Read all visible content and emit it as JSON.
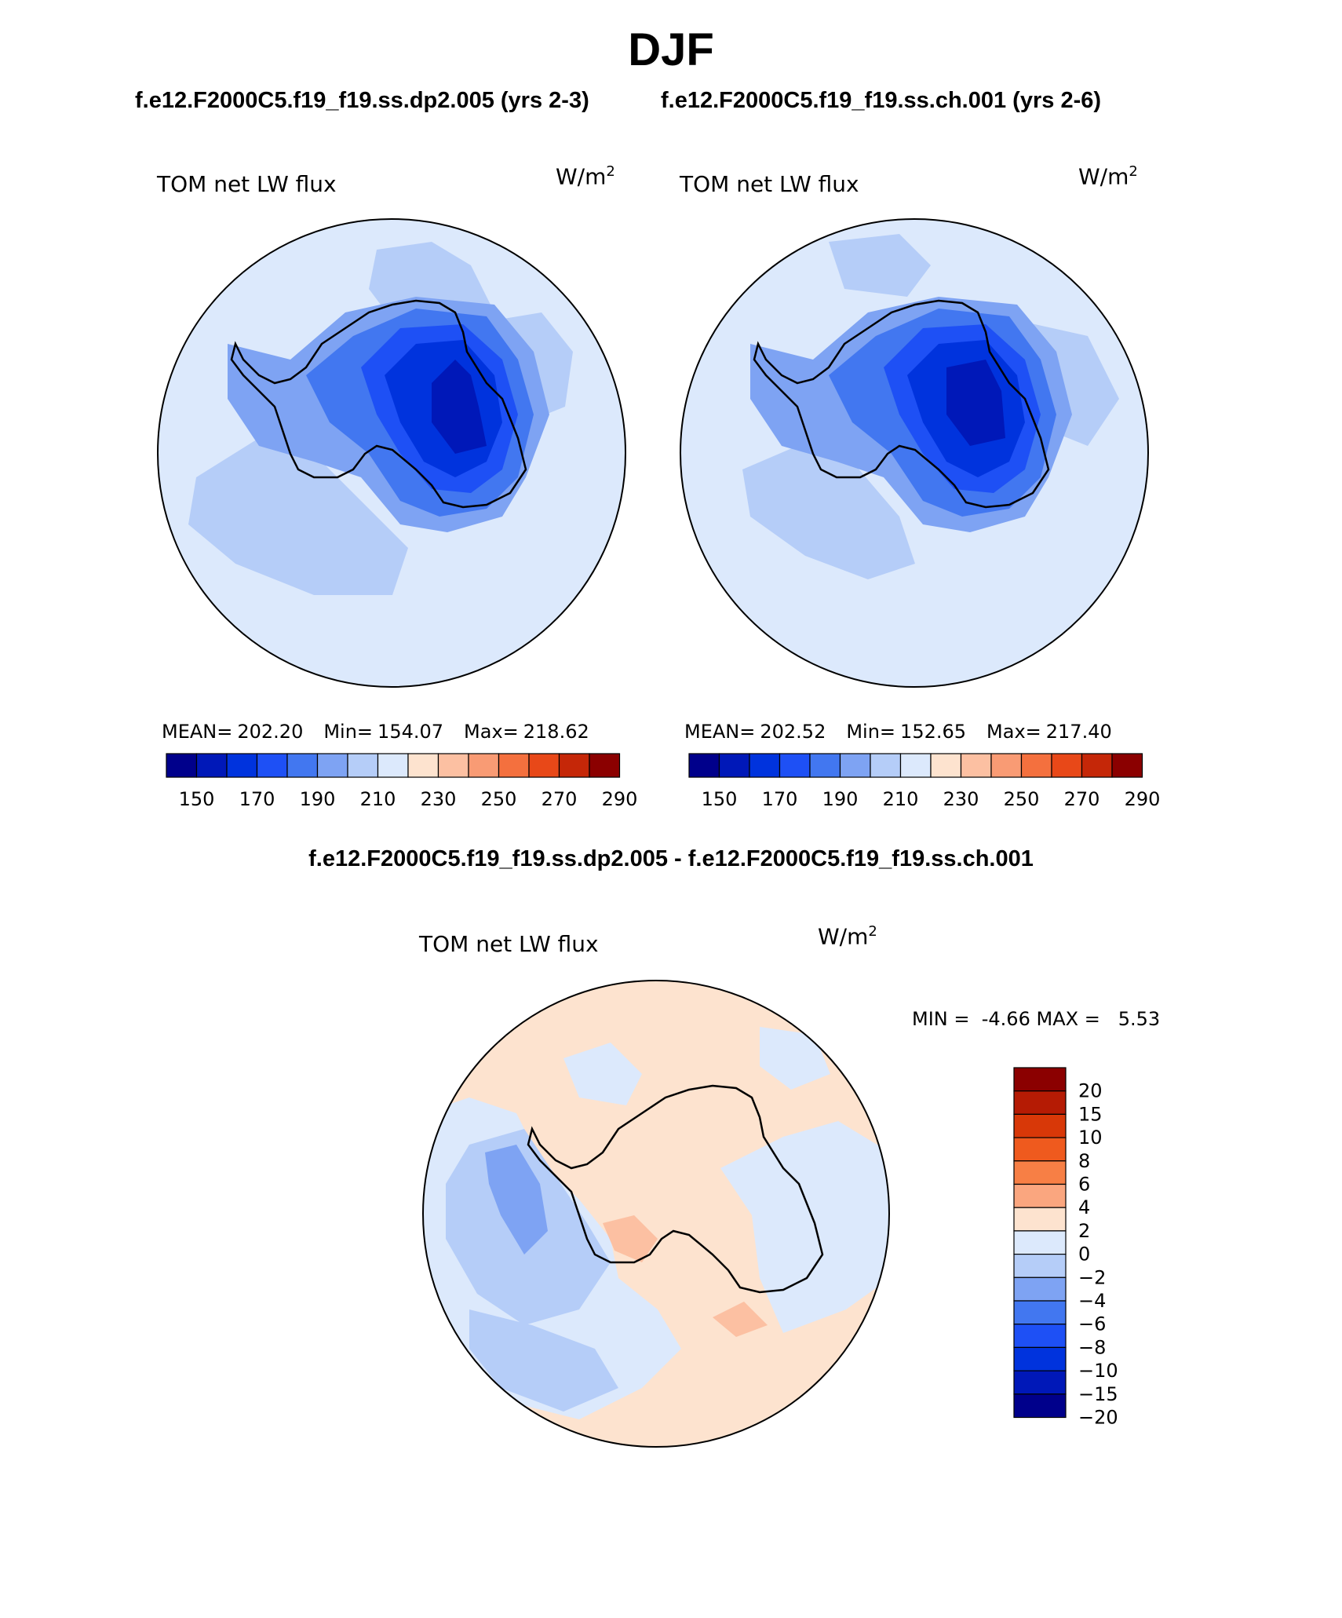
{
  "figure": {
    "season": "DJF",
    "case_left_title": "f.e12.F2000C5.f19_f19.ss.dp2.005 (yrs 2-3)",
    "case_right_title": "f.e12.F2000C5.f19_f19.ss.ch.001 (yrs 2-6)",
    "difference_title": "f.e12.F2000C5.f19_f19.ss.dp2.005 - f.e12.F2000C5.f19_f19.ss.ch.001"
  },
  "panels": [
    {
      "variable": "TOM net LW flux",
      "units": "W/m",
      "units_exp": "2",
      "mean_label": "MEAN=",
      "mean": "202.20",
      "min_label": "Min=",
      "min": "154.07",
      "max_label": "Max=",
      "max": "218.62"
    },
    {
      "variable": "TOM net LW flux",
      "units": "W/m",
      "units_exp": "2",
      "mean_label": "MEAN=",
      "mean": "202.52",
      "min_label": "Min=",
      "min": "152.65",
      "max_label": "Max=",
      "max": "217.40"
    }
  ],
  "diff_panel": {
    "variable": "TOM net LW flux",
    "units": "W/m",
    "units_exp": "2",
    "min_label": "MIN =",
    "min": "-4.66",
    "max_label": "MAX =",
    "max": "5.53"
  },
  "colorbar_top": {
    "colors": [
      "#00008b",
      "#0018b8",
      "#0033dd",
      "#1e50f5",
      "#4277f0",
      "#7ea3f3",
      "#b5cdf8",
      "#dce9fc",
      "#fde3cf",
      "#fcc0a2",
      "#f99b74",
      "#f4703e",
      "#e84818",
      "#c52708",
      "#8b0000"
    ],
    "tick_labels": [
      "150",
      "170",
      "190",
      "210",
      "230",
      "250",
      "270",
      "290"
    ]
  },
  "colorbar_diff": {
    "colors": [
      "#8b0000",
      "#b51b04",
      "#d83808",
      "#ef5a1e",
      "#f77f45",
      "#faa67f",
      "#fde3cf",
      "#dce9fc",
      "#b5cdf8",
      "#7ea3f3",
      "#4277f0",
      "#1e50f5",
      "#0033dd",
      "#0018b8",
      "#00008b"
    ],
    "tick_labels": [
      "20",
      "15",
      "10",
      "8",
      "6",
      "4",
      "2",
      "0",
      "−2",
      "−4",
      "−6",
      "−8",
      "−10",
      "−15",
      "−20"
    ]
  },
  "map_colors": {
    "bg_light_blue": "#dce9fc",
    "mid_blue": "#b5cdf8",
    "blue": "#7ea3f3",
    "deep_blue": "#4277f0",
    "darker_blue": "#1e50f5",
    "darkest_blue": "#0033dd",
    "navy": "#0018b8",
    "peach": "#fde3cf",
    "salmon": "#fcc0a2"
  }
}
